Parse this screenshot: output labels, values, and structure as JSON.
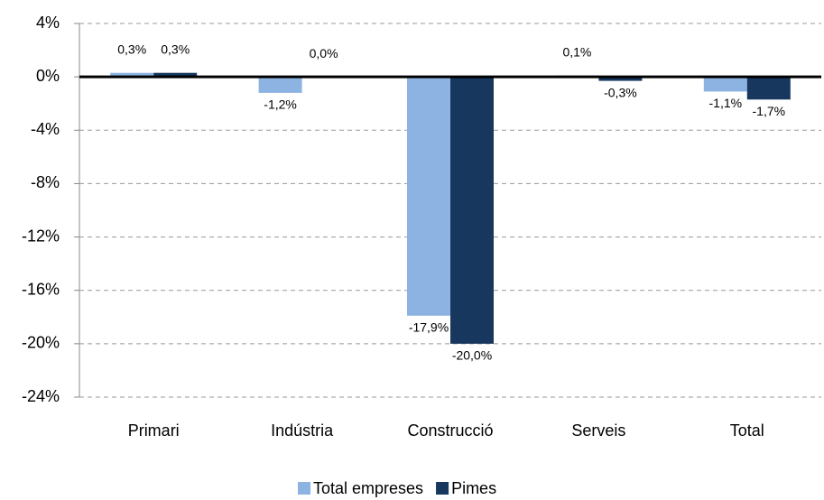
{
  "chart_data": {
    "type": "bar",
    "categories": [
      "Primari",
      "Indústria",
      "Construcció",
      "Serveis",
      "Total"
    ],
    "series": [
      {
        "name": "Total empreses",
        "color": "#8db3e2",
        "values": [
          0.3,
          -1.2,
          -17.9,
          0.1,
          -1.1
        ],
        "value_labels": [
          "0,3%",
          "-1,2%",
          "-17,9%",
          "0,1%",
          "-1,1%"
        ]
      },
      {
        "name": "Pimes",
        "color": "#17375e",
        "values": [
          0.3,
          0.0,
          -20.0,
          -0.3,
          -1.7
        ],
        "value_labels": [
          "0,3%",
          "0,0%",
          "-20,0%",
          "-0,3%",
          "-1,7%"
        ]
      }
    ],
    "ylim": [
      -24,
      4
    ],
    "yticks": [
      {
        "value": 4,
        "label": "4%"
      },
      {
        "value": 0,
        "label": "0%"
      },
      {
        "value": -4,
        "label": "-4%"
      },
      {
        "value": -8,
        "label": "-8%"
      },
      {
        "value": -12,
        "label": "-12%"
      },
      {
        "value": -16,
        "label": "-16%"
      },
      {
        "value": -20,
        "label": "-20%"
      },
      {
        "value": -24,
        "label": "-24%"
      }
    ],
    "grid": true,
    "legend": "bottom"
  }
}
